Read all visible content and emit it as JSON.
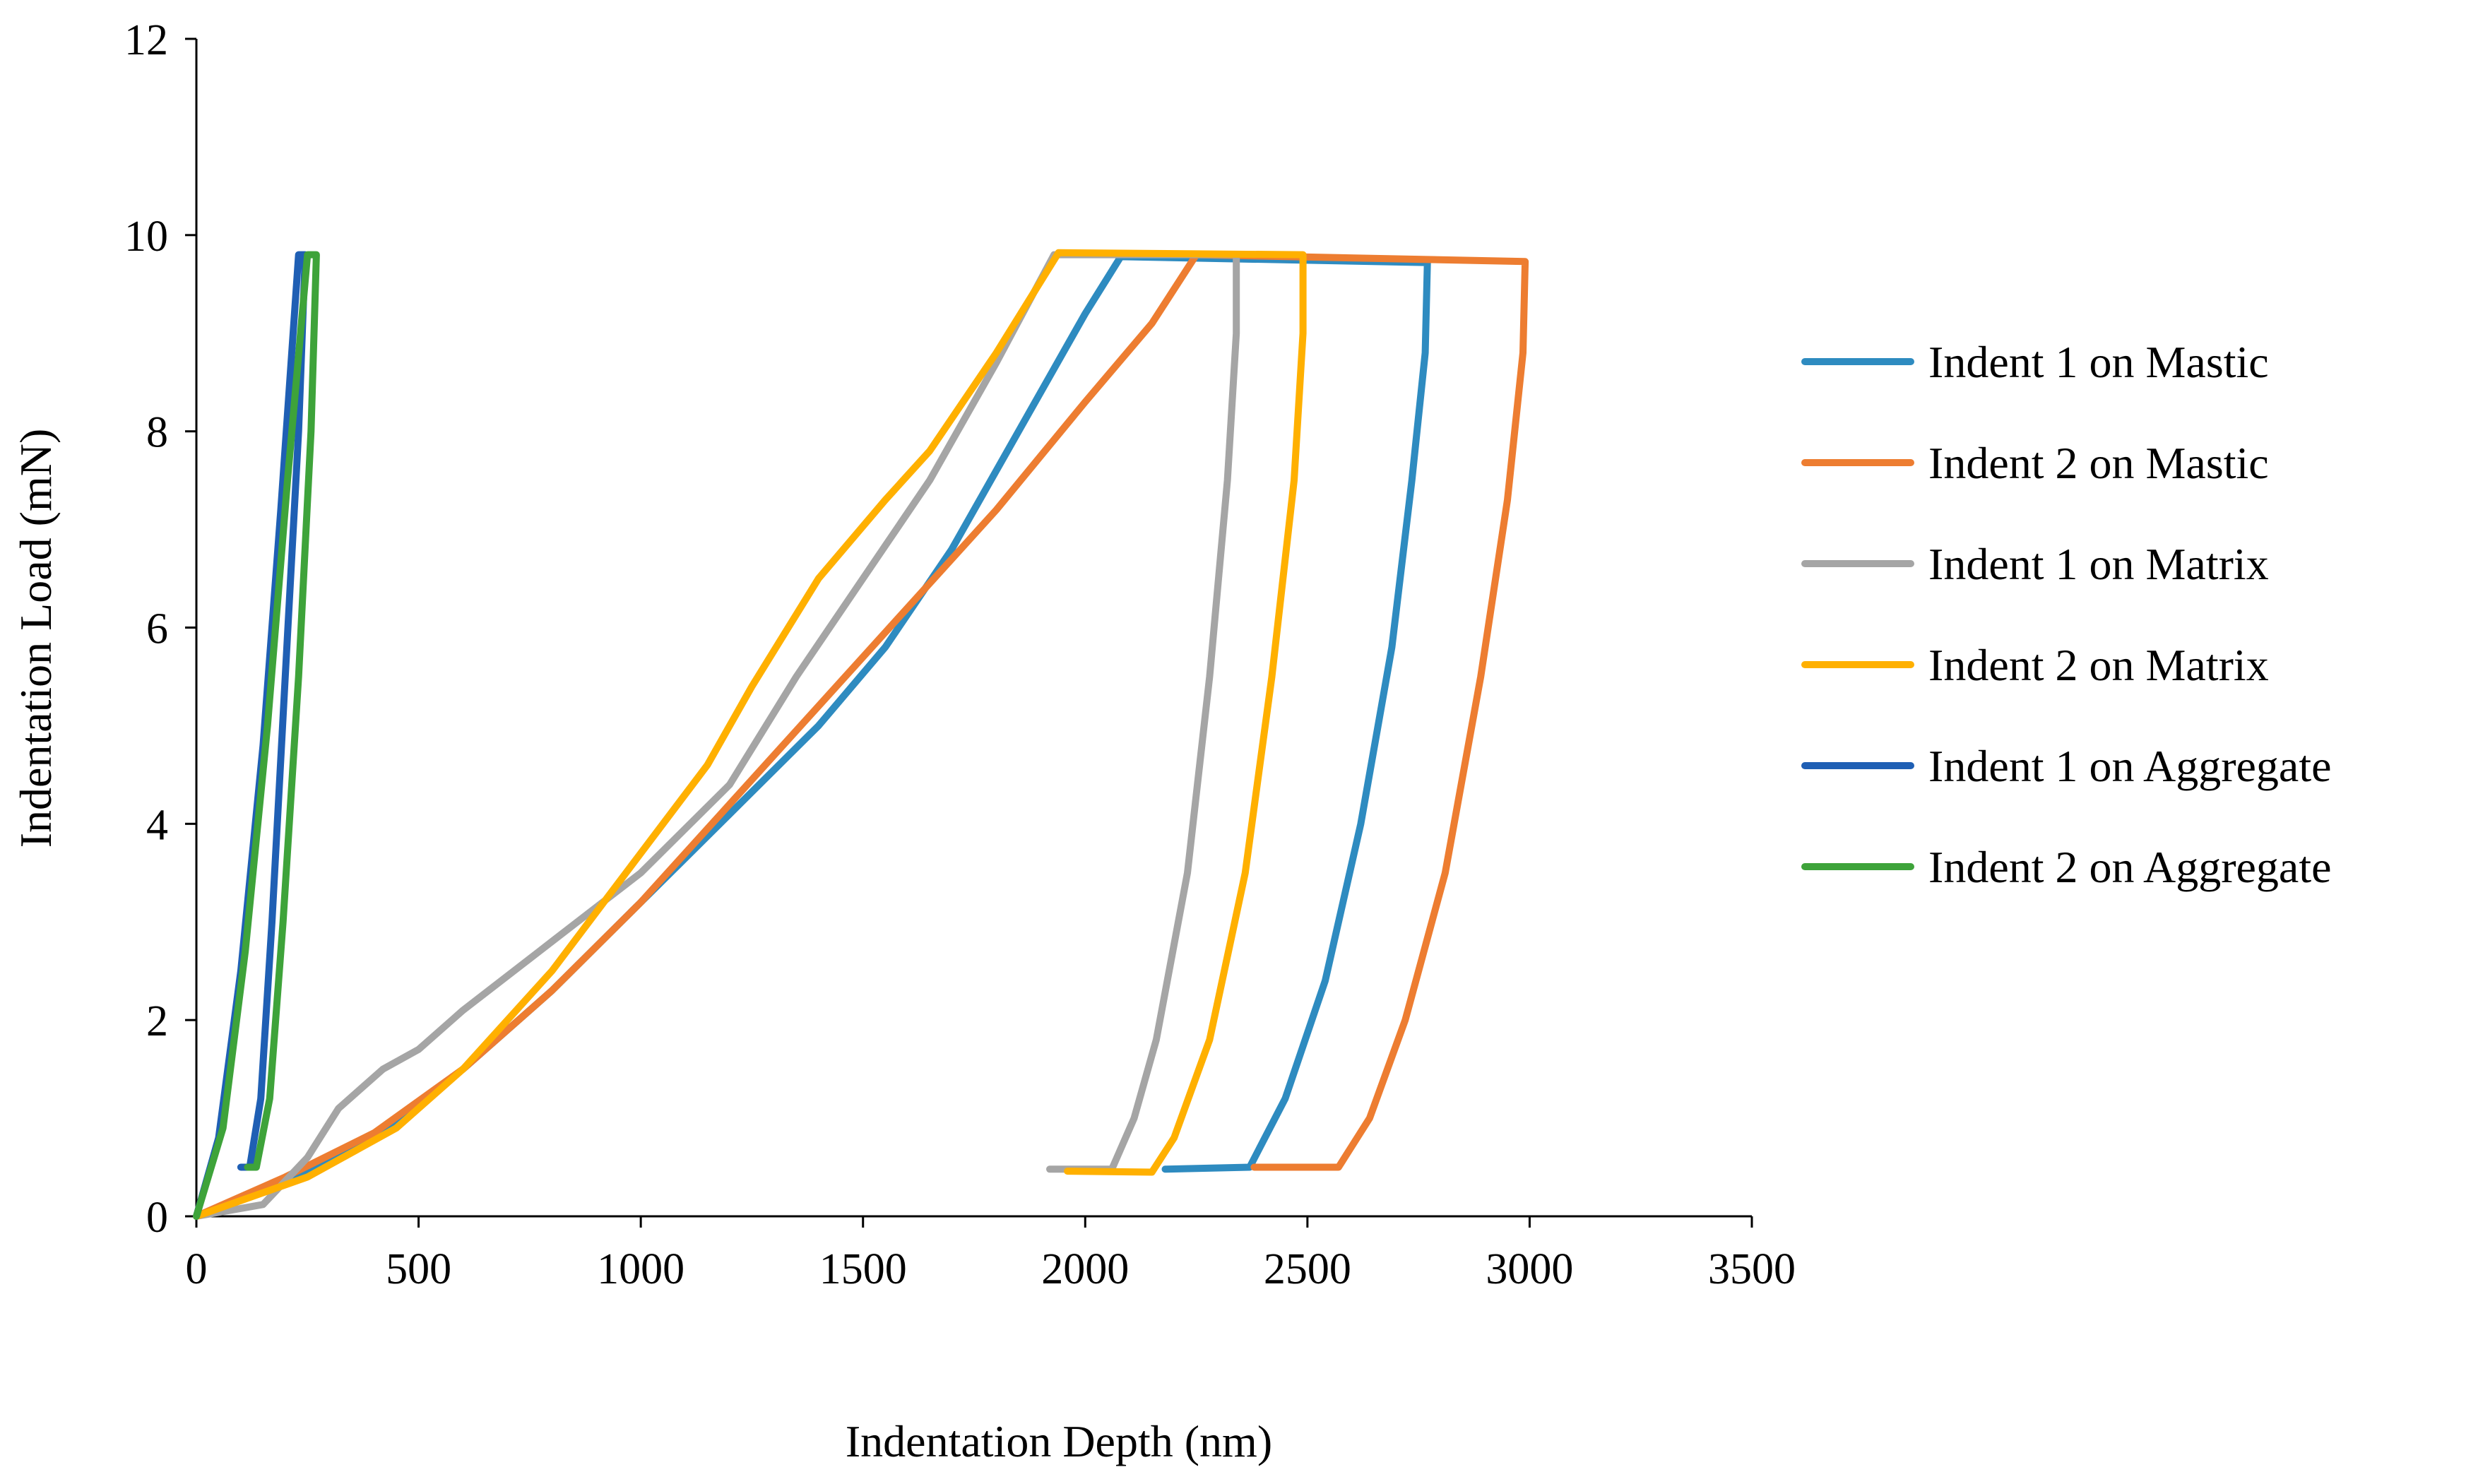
{
  "chart_data": {
    "type": "line",
    "title": "",
    "xlabel": "Indentation Depth (nm)",
    "ylabel": "Indentation Load (mN)",
    "xlim": [
      0,
      3500
    ],
    "ylim": [
      0,
      12
    ],
    "x_ticks": [
      0,
      500,
      1000,
      1500,
      2000,
      2500,
      3000,
      3500
    ],
    "y_ticks": [
      0,
      2,
      4,
      6,
      8,
      10,
      12
    ],
    "x_tick_labels": [
      "0",
      "500",
      "1000",
      "1500",
      "2000",
      "2500",
      "3000",
      "3500"
    ],
    "y_tick_labels": [
      "0",
      "2",
      "4",
      "6",
      "8",
      "10",
      "12"
    ],
    "grid": false,
    "legend_position": "right",
    "series": [
      {
        "name": "Indent 1 on Mastic",
        "color": "#2E8BC0",
        "points": [
          [
            0,
            0
          ],
          [
            200,
            0.35
          ],
          [
            400,
            0.8
          ],
          [
            600,
            1.5
          ],
          [
            800,
            2.3
          ],
          [
            1000,
            3.2
          ],
          [
            1200,
            4.1
          ],
          [
            1400,
            5.0
          ],
          [
            1550,
            5.8
          ],
          [
            1700,
            6.8
          ],
          [
            1850,
            8.0
          ],
          [
            2000,
            9.2
          ],
          [
            2080,
            9.78
          ],
          [
            2770,
            9.72
          ],
          [
            2765,
            8.8
          ],
          [
            2735,
            7.5
          ],
          [
            2690,
            5.8
          ],
          [
            2620,
            4.0
          ],
          [
            2540,
            2.4
          ],
          [
            2450,
            1.2
          ],
          [
            2370,
            0.5
          ],
          [
            2180,
            0.48
          ]
        ]
      },
      {
        "name": "Indent 2 on Mastic",
        "color": "#ED7D31",
        "points": [
          [
            0,
            0
          ],
          [
            200,
            0.4
          ],
          [
            400,
            0.85
          ],
          [
            600,
            1.5
          ],
          [
            800,
            2.3
          ],
          [
            1000,
            3.2
          ],
          [
            1200,
            4.2
          ],
          [
            1400,
            5.2
          ],
          [
            1600,
            6.2
          ],
          [
            1800,
            7.2
          ],
          [
            2000,
            8.3
          ],
          [
            2150,
            9.1
          ],
          [
            2250,
            9.8
          ],
          [
            2990,
            9.73
          ],
          [
            2985,
            8.8
          ],
          [
            2950,
            7.3
          ],
          [
            2890,
            5.5
          ],
          [
            2810,
            3.5
          ],
          [
            2720,
            2.0
          ],
          [
            2640,
            1.0
          ],
          [
            2570,
            0.5
          ],
          [
            2380,
            0.5
          ]
        ]
      },
      {
        "name": "Indent 1 on Matrix",
        "color": "#A5A5A5",
        "points": [
          [
            0,
            0
          ],
          [
            150,
            0.12
          ],
          [
            250,
            0.6
          ],
          [
            320,
            1.1
          ],
          [
            420,
            1.5
          ],
          [
            500,
            1.7
          ],
          [
            600,
            2.1
          ],
          [
            800,
            2.8
          ],
          [
            1000,
            3.5
          ],
          [
            1200,
            4.4
          ],
          [
            1350,
            5.5
          ],
          [
            1500,
            6.5
          ],
          [
            1650,
            7.5
          ],
          [
            1800,
            8.7
          ],
          [
            1930,
            9.8
          ],
          [
            2340,
            9.8
          ],
          [
            2340,
            9.0
          ],
          [
            2320,
            7.5
          ],
          [
            2280,
            5.5
          ],
          [
            2230,
            3.5
          ],
          [
            2160,
            1.8
          ],
          [
            2110,
            1.0
          ],
          [
            2060,
            0.48
          ],
          [
            1920,
            0.48
          ]
        ]
      },
      {
        "name": "Indent 2 on Matrix",
        "color": "#FFB000",
        "points": [
          [
            0,
            0
          ],
          [
            250,
            0.4
          ],
          [
            450,
            0.9
          ],
          [
            600,
            1.5
          ],
          [
            800,
            2.5
          ],
          [
            1000,
            3.7
          ],
          [
            1150,
            4.6
          ],
          [
            1250,
            5.4
          ],
          [
            1400,
            6.5
          ],
          [
            1550,
            7.3
          ],
          [
            1650,
            7.8
          ],
          [
            1800,
            8.8
          ],
          [
            1940,
            9.82
          ],
          [
            2490,
            9.8
          ],
          [
            2490,
            9.0
          ],
          [
            2470,
            7.5
          ],
          [
            2420,
            5.5
          ],
          [
            2360,
            3.5
          ],
          [
            2280,
            1.8
          ],
          [
            2200,
            0.8
          ],
          [
            2150,
            0.45
          ],
          [
            1960,
            0.46
          ]
        ]
      },
      {
        "name": "Indent 1 on Aggregate",
        "color": "#1F5FB4",
        "points": [
          [
            0,
            0
          ],
          [
            50,
            0.8
          ],
          [
            100,
            2.5
          ],
          [
            150,
            4.8
          ],
          [
            190,
            7.2
          ],
          [
            230,
            9.8
          ],
          [
            245,
            9.8
          ],
          [
            230,
            8.0
          ],
          [
            200,
            5.5
          ],
          [
            170,
            3.0
          ],
          [
            145,
            1.2
          ],
          [
            120,
            0.5
          ],
          [
            100,
            0.5
          ]
        ]
      },
      {
        "name": "Indent 2 on Aggregate",
        "color": "#3EA33A",
        "points": [
          [
            0,
            0
          ],
          [
            60,
            0.9
          ],
          [
            110,
            2.7
          ],
          [
            160,
            5.0
          ],
          [
            205,
            7.5
          ],
          [
            250,
            9.8
          ],
          [
            270,
            9.8
          ],
          [
            258,
            8.0
          ],
          [
            230,
            5.5
          ],
          [
            195,
            3.0
          ],
          [
            165,
            1.2
          ],
          [
            135,
            0.5
          ],
          [
            115,
            0.5
          ]
        ]
      }
    ]
  }
}
